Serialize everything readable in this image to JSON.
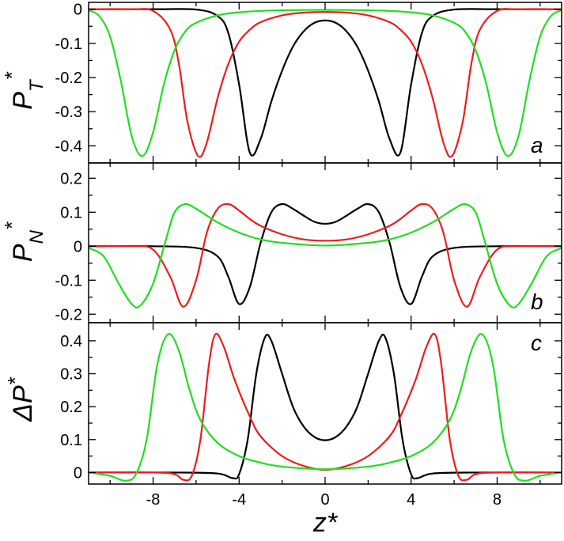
{
  "chart_data": [
    {
      "type": "line",
      "panel_letter": "a",
      "ylabel": {
        "main": "P",
        "sup": "*",
        "sub": "T"
      },
      "xlim": [
        -11,
        11
      ],
      "ylim": [
        -0.45,
        0.02
      ],
      "yticks": [
        0,
        -0.1,
        -0.2,
        -0.3,
        -0.4
      ],
      "ytick_labels": [
        "0",
        "-0.1",
        "-0.2",
        "-0.3",
        "-0.4"
      ],
      "series": [
        {
          "color": "#000000",
          "x": [
            -11,
            -8,
            -6,
            -5,
            -4.5,
            -4,
            -3.5,
            -3,
            -2.5,
            -2,
            -1.5,
            -1,
            -0.5,
            0,
            0.5,
            1,
            1.5,
            2,
            2.5,
            3,
            3.5,
            4,
            4.5,
            5,
            6,
            8,
            11
          ],
          "y": [
            0,
            0,
            -0.001,
            -0.02,
            -0.07,
            -0.22,
            -0.42,
            -0.38,
            -0.27,
            -0.18,
            -0.11,
            -0.065,
            -0.04,
            -0.033,
            -0.04,
            -0.065,
            -0.11,
            -0.18,
            -0.27,
            -0.38,
            -0.42,
            -0.22,
            -0.07,
            -0.02,
            -0.001,
            0,
            0
          ]
        },
        {
          "color": "#ee1c1c",
          "x": [
            -11,
            -9,
            -8,
            -7.2,
            -6.8,
            -6.4,
            -5.9,
            -5.5,
            -5,
            -4.5,
            -4,
            -3.5,
            -3,
            -2,
            -1,
            0,
            1,
            2,
            3,
            3.5,
            4,
            4.5,
            5,
            5.5,
            5.9,
            6.4,
            6.8,
            7.2,
            8,
            9,
            11
          ],
          "y": [
            0,
            0,
            -0.005,
            -0.06,
            -0.16,
            -0.33,
            -0.43,
            -0.39,
            -0.26,
            -0.16,
            -0.095,
            -0.06,
            -0.038,
            -0.018,
            -0.01,
            -0.008,
            -0.01,
            -0.018,
            -0.038,
            -0.06,
            -0.095,
            -0.16,
            -0.26,
            -0.39,
            -0.43,
            -0.33,
            -0.16,
            -0.06,
            -0.005,
            0,
            0
          ]
        },
        {
          "color": "#22dd22",
          "x": [
            -11,
            -10.5,
            -10,
            -9.5,
            -9,
            -8.5,
            -8,
            -7.5,
            -7,
            -6.5,
            -6,
            -5,
            -4,
            -3,
            -2,
            0,
            2,
            3,
            4,
            5,
            6,
            6.5,
            7,
            7.5,
            8,
            8.5,
            9,
            9.5,
            10,
            10.5,
            11
          ],
          "y": [
            -0.003,
            -0.02,
            -0.08,
            -0.21,
            -0.37,
            -0.43,
            -0.36,
            -0.22,
            -0.12,
            -0.065,
            -0.04,
            -0.018,
            -0.009,
            -0.005,
            -0.003,
            -0.002,
            -0.003,
            -0.005,
            -0.009,
            -0.018,
            -0.04,
            -0.065,
            -0.12,
            -0.22,
            -0.36,
            -0.43,
            -0.37,
            -0.21,
            -0.08,
            -0.02,
            -0.003
          ]
        }
      ]
    },
    {
      "type": "line",
      "panel_letter": "b",
      "ylabel": {
        "main": "P",
        "sup": "*",
        "sub": "N"
      },
      "xlim": [
        -11,
        11
      ],
      "ylim": [
        -0.225,
        0.245
      ],
      "yticks": [
        0.2,
        0.1,
        0,
        -0.1,
        -0.2
      ],
      "ytick_labels": [
        "0.2",
        "0.1",
        "0",
        "-0.1",
        "-0.2"
      ],
      "series": [
        {
          "color": "#000000",
          "x": [
            -11,
            -8,
            -6,
            -5,
            -4.5,
            -4,
            -3.5,
            -3,
            -2.5,
            -2,
            -1.5,
            -1,
            -0.5,
            0,
            0.5,
            1,
            1.5,
            2,
            2.5,
            3,
            3.5,
            4,
            4.5,
            5,
            6,
            8,
            11
          ],
          "y": [
            0,
            0,
            -0.005,
            -0.03,
            -0.09,
            -0.17,
            -0.12,
            0.01,
            0.1,
            0.124,
            0.11,
            0.09,
            0.072,
            0.066,
            0.072,
            0.09,
            0.11,
            0.124,
            0.1,
            0.01,
            -0.12,
            -0.17,
            -0.09,
            -0.03,
            -0.005,
            0,
            0
          ]
        },
        {
          "color": "#ee1c1c",
          "x": [
            -11,
            -9,
            -8,
            -7.2,
            -6.6,
            -6,
            -5.5,
            -5,
            -4.5,
            -4,
            -3.5,
            -3,
            -2,
            -1,
            0,
            1,
            2,
            3,
            3.5,
            4,
            4.5,
            5,
            5.5,
            6,
            6.6,
            7.2,
            8,
            9,
            11
          ],
          "y": [
            0,
            0,
            -0.01,
            -0.09,
            -0.178,
            -0.1,
            0.04,
            0.11,
            0.124,
            0.105,
            0.08,
            0.06,
            0.035,
            0.02,
            0.016,
            0.02,
            0.035,
            0.06,
            0.08,
            0.105,
            0.124,
            0.11,
            0.04,
            -0.1,
            -0.178,
            -0.09,
            -0.01,
            0,
            0
          ]
        },
        {
          "color": "#22dd22",
          "x": [
            -11,
            -10.3,
            -9.6,
            -9,
            -8.6,
            -8,
            -7.4,
            -7,
            -6.5,
            -6,
            -5.5,
            -5,
            -4,
            -3,
            -2,
            0,
            2,
            3,
            4,
            5,
            5.5,
            6,
            6.5,
            7,
            7.4,
            8,
            8.6,
            9,
            9.6,
            10.3,
            11
          ],
          "y": [
            -0.005,
            -0.03,
            -0.11,
            -0.17,
            -0.175,
            -0.11,
            0.02,
            0.1,
            0.124,
            0.11,
            0.09,
            0.07,
            0.04,
            0.02,
            0.01,
            0.002,
            0.01,
            0.02,
            0.04,
            0.07,
            0.09,
            0.11,
            0.124,
            0.1,
            0.02,
            -0.11,
            -0.175,
            -0.17,
            -0.11,
            -0.03,
            -0.005
          ]
        }
      ]
    },
    {
      "type": "line",
      "panel_letter": "c",
      "ylabel": {
        "main": "ΔP",
        "sup": "*",
        "sub": ""
      },
      "xlabel": "z*",
      "xlim": [
        -11,
        11
      ],
      "ylim": [
        -0.035,
        0.455
      ],
      "xticks": [
        -8,
        -4,
        0,
        4,
        8
      ],
      "xtick_labels": [
        "-8",
        "-4",
        "0",
        "4",
        "8"
      ],
      "yticks": [
        0.4,
        0.3,
        0.2,
        0.1,
        0
      ],
      "ytick_labels": [
        "0.4",
        "0.3",
        "0.2",
        "0.1",
        "0"
      ],
      "series": [
        {
          "color": "#000000",
          "x": [
            -11,
            -7,
            -5,
            -4.3,
            -4,
            -3.6,
            -3.2,
            -2.8,
            -2.5,
            -2,
            -1.5,
            -1,
            -0.5,
            0,
            0.5,
            1,
            1.5,
            2,
            2.5,
            2.8,
            3.2,
            3.6,
            4,
            4.3,
            5,
            7,
            11
          ],
          "y": [
            0,
            0,
            -0.003,
            -0.017,
            -0.005,
            0.1,
            0.3,
            0.41,
            0.4,
            0.3,
            0.2,
            0.14,
            0.108,
            0.098,
            0.108,
            0.14,
            0.2,
            0.3,
            0.4,
            0.41,
            0.3,
            0.1,
            -0.005,
            -0.017,
            -0.003,
            0,
            0
          ]
        },
        {
          "color": "#ee1c1c",
          "x": [
            -11,
            -8,
            -7,
            -6.6,
            -6.2,
            -5.8,
            -5.4,
            -5.1,
            -4.7,
            -4.2,
            -3.5,
            -3,
            -2,
            -1,
            0,
            1,
            2,
            3,
            3.5,
            4.2,
            4.7,
            5.1,
            5.4,
            5.8,
            6.2,
            6.6,
            7,
            8,
            11
          ],
          "y": [
            0,
            0,
            -0.005,
            -0.022,
            -0.01,
            0.1,
            0.33,
            0.42,
            0.38,
            0.28,
            0.17,
            0.11,
            0.05,
            0.02,
            0.008,
            0.02,
            0.05,
            0.11,
            0.17,
            0.28,
            0.38,
            0.42,
            0.33,
            0.1,
            -0.01,
            -0.022,
            -0.005,
            0,
            0
          ]
        },
        {
          "color": "#22dd22",
          "x": [
            -11,
            -10,
            -9.3,
            -8.8,
            -8.3,
            -7.8,
            -7.3,
            -6.8,
            -6.3,
            -5.8,
            -5,
            -4,
            -3,
            -2,
            0,
            2,
            3,
            4,
            5,
            5.8,
            6.3,
            6.8,
            7.3,
            7.8,
            8.3,
            8.8,
            9.3,
            10,
            11
          ],
          "y": [
            0,
            -0.01,
            -0.025,
            -0.005,
            0.1,
            0.33,
            0.42,
            0.37,
            0.25,
            0.16,
            0.09,
            0.05,
            0.03,
            0.018,
            0.01,
            0.018,
            0.03,
            0.05,
            0.09,
            0.16,
            0.25,
            0.37,
            0.42,
            0.33,
            0.1,
            -0.005,
            -0.025,
            -0.01,
            0
          ]
        }
      ]
    }
  ]
}
